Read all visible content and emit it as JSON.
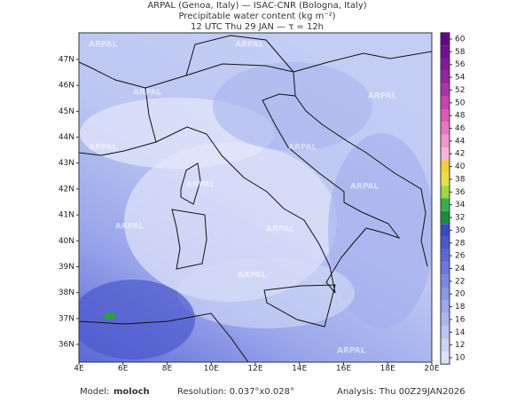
{
  "header": {
    "lines": [
      "ARPAL (Genoa, Italy)  —  ISAC-CNR (Bologna, Italy)",
      "Precipitable water content (kg m⁻²)",
      "12 UTC Thu 29 JAN  —  τ = 12h"
    ]
  },
  "map": {
    "watermark": "ARPAL",
    "lat_labels": [
      "36N",
      "37N",
      "38N",
      "39N",
      "40N",
      "41N",
      "42N",
      "43N",
      "44N",
      "45N",
      "46N",
      "47N"
    ],
    "lon_labels": [
      "4E",
      "6E",
      "8E",
      "10E",
      "12E",
      "14E",
      "16E",
      "18E",
      "20E"
    ]
  },
  "colorbar": {
    "levels": [
      10,
      12,
      14,
      16,
      18,
      20,
      22,
      24,
      26,
      28,
      30,
      32,
      34,
      36,
      38,
      40,
      42,
      44,
      46,
      48,
      50,
      52,
      54,
      56,
      58,
      60
    ],
    "colors": [
      "#dde1f8",
      "#ccd3f5",
      "#bcc4f1",
      "#acb5ed",
      "#9ca6e9",
      "#8c97e5",
      "#7c88e0",
      "#6c79da",
      "#5c69d2",
      "#4c59ca",
      "#3c49c0",
      "#1e8a3a",
      "#36b04a",
      "#9ed84a",
      "#e4e244",
      "#f2cf3c",
      "#f4b6d8",
      "#ec98cc",
      "#e278c2",
      "#d65ab8",
      "#c444b0",
      "#a834a8",
      "#9424a0",
      "#821a98",
      "#701090",
      "#600888"
    ]
  },
  "footer": {
    "model_label": "Model:",
    "model": "moloch",
    "resolution": "Resolution: 0.037°x0.028°",
    "analysis": "Analysis: Thu 00Z29JAN2026"
  }
}
